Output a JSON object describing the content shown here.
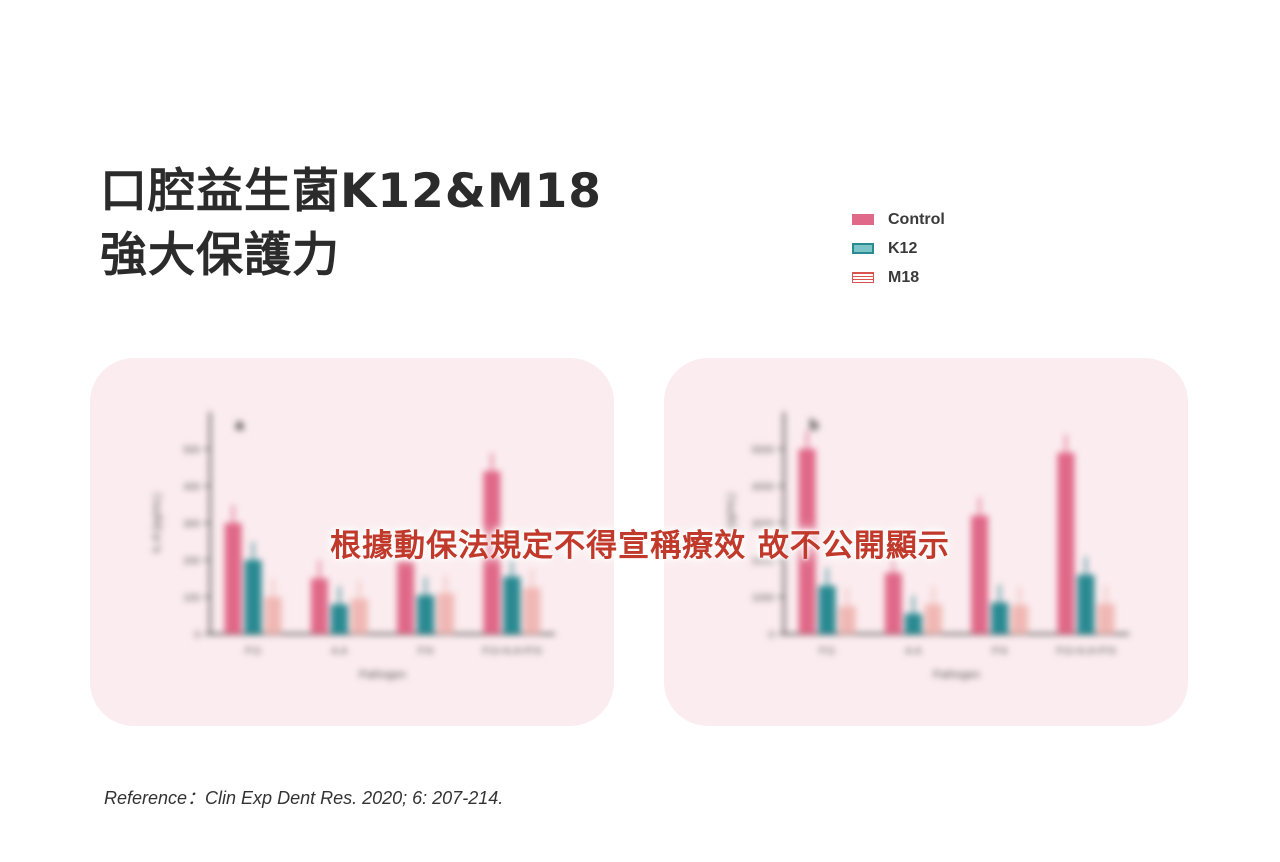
{
  "title": {
    "line1": "口腔益生菌K12&M18",
    "line2": "強大保護力"
  },
  "legend": [
    {
      "name": "Control",
      "color": "#e06888",
      "style": "solid"
    },
    {
      "name": "K12",
      "color": "#2a8a92",
      "style": "teal"
    },
    {
      "name": "M18",
      "color": "#e8908e",
      "style": "hatched"
    }
  ],
  "overlay_text": "根據動保法規定不得宣稱療效 故不公開顯示",
  "reference": "Reference：Clin Exp Dent Res. 2020; 6: 207-214.",
  "colors": {
    "control": "#e06888",
    "k12": "#2a8a92",
    "m18": "#f0b8b4",
    "panel_bg": "#fbecef",
    "overlay": "#c0392b"
  },
  "chart_data": [
    {
      "type": "bar",
      "panel_label": "a",
      "categories": [
        "P.G",
        "A.A",
        "P.N",
        "P.G+A.A+P.N"
      ],
      "xlabel": "Pathogen",
      "ylabel": "IL-8 (pg/mL)",
      "yticks": [
        "0",
        "100",
        "200",
        "300",
        "400",
        "500"
      ],
      "ylim": [
        0,
        600
      ],
      "series": [
        {
          "name": "Control",
          "values": [
            300,
            150,
            200,
            440
          ]
        },
        {
          "name": "K12",
          "values": [
            200,
            80,
            105,
            155
          ]
        },
        {
          "name": "M18",
          "values": [
            100,
            95,
            110,
            125
          ]
        }
      ]
    },
    {
      "type": "bar",
      "panel_label": "b",
      "categories": [
        "P.G",
        "A.A",
        "P.N",
        "P.G+A.A+P.N"
      ],
      "xlabel": "Pathogen",
      "ylabel": "IL-8 (pg/mL)",
      "yticks": [
        "0",
        "1000",
        "2000",
        "3000",
        "4000",
        "5000"
      ],
      "ylim": [
        0,
        6000
      ],
      "series": [
        {
          "name": "Control",
          "values": [
            5000,
            1650,
            3200,
            4900
          ]
        },
        {
          "name": "K12",
          "values": [
            1300,
            550,
            850,
            1600
          ]
        },
        {
          "name": "M18",
          "values": [
            750,
            800,
            780,
            820
          ]
        }
      ]
    }
  ]
}
